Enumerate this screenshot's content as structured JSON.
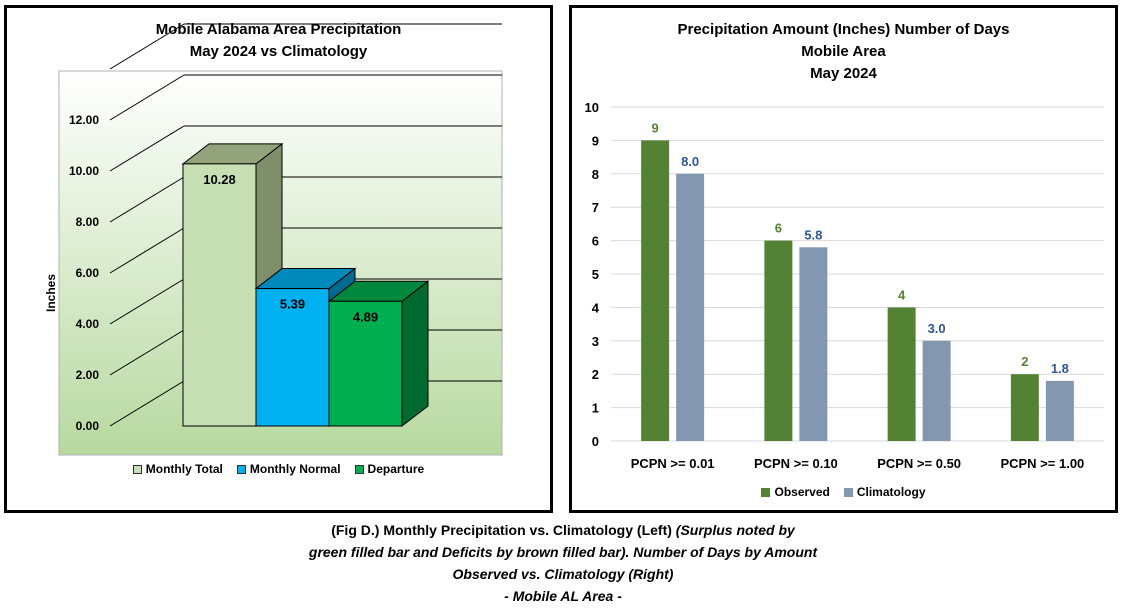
{
  "left": {
    "title_line1": "Mobile Alabama Area Precipitation",
    "title_line2": "May 2024 vs Climatology",
    "chart_data": {
      "type": "bar",
      "categories": [
        "Monthly Total",
        "Monthly Normal",
        "Departure"
      ],
      "values": [
        10.28,
        5.39,
        4.89
      ],
      "value_labels": [
        "10.28",
        "5.39",
        "4.89"
      ],
      "ylabel": "Inches",
      "ylim": [
        0,
        14
      ],
      "yticks": [
        "0.00",
        "2.00",
        "4.00",
        "6.00",
        "8.00",
        "10.00",
        "12.00"
      ],
      "legend": [
        "Monthly Total",
        "Monthly Normal",
        "Departure"
      ],
      "legend_position": "bottom",
      "grid": true,
      "style": "3d",
      "colors": [
        "#c6e0b4",
        "#00b0f0",
        "#00b050"
      ]
    }
  },
  "right": {
    "title_line1": "Precipitation Amount (Inches) Number of Days",
    "title_line2": "Mobile Area",
    "title_line3": "May 2024",
    "chart_data": {
      "type": "bar",
      "categories": [
        "PCPN >= 0.01",
        "PCPN >= 0.10",
        "PCPN >= 0.50",
        "PCPN >= 1.00"
      ],
      "series": [
        {
          "name": "Observed",
          "values": [
            9,
            6,
            4,
            2
          ],
          "labels": [
            "9",
            "6",
            "4",
            "2"
          ],
          "color": "#548235"
        },
        {
          "name": "Climatology",
          "values": [
            8.0,
            5.8,
            3.0,
            1.8
          ],
          "labels": [
            "8.0",
            "5.8",
            "3.0",
            "1.8"
          ],
          "color": "#8497b0"
        }
      ],
      "ylim": [
        0,
        10
      ],
      "yticks": [
        "0",
        "1",
        "2",
        "3",
        "4",
        "5",
        "6",
        "7",
        "8",
        "9",
        "10"
      ],
      "legend_position": "bottom",
      "grid": true,
      "label_colors": [
        "#548235",
        "#2f5597"
      ]
    }
  },
  "caption": {
    "line1_normal": "(Fig D.) Monthly Precipitation vs. Climatology (Left) ",
    "line1_italic": "(Surplus noted by",
    "line2": "green filled bar and Deficits by brown filled bar). Number of Days by Amount",
    "line3": "Observed vs. Climatology (Right)",
    "line4": "- Mobile AL Area -"
  }
}
